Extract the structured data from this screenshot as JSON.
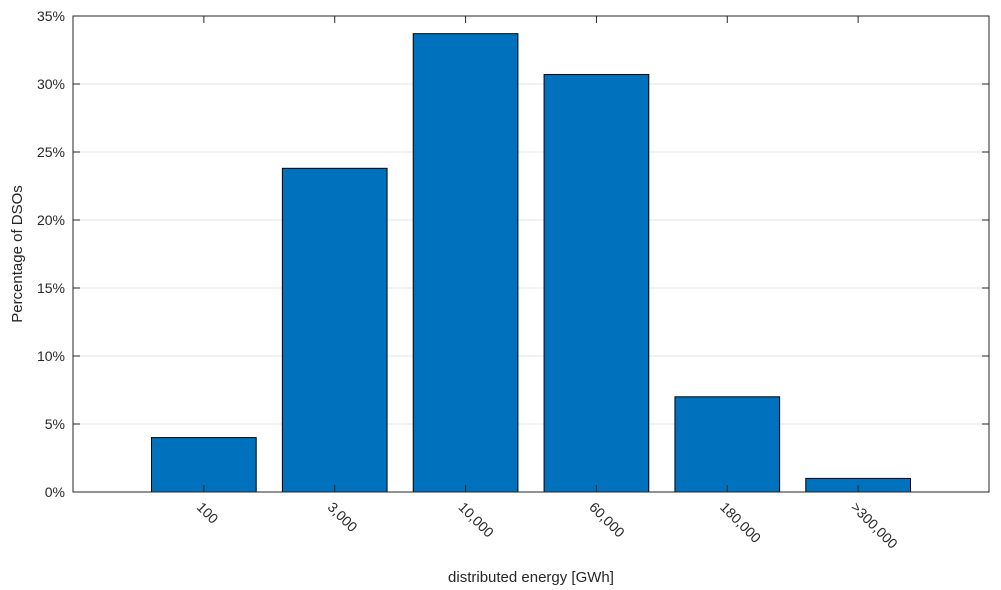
{
  "chart_data": {
    "type": "bar",
    "categories": [
      "100",
      "3,000",
      "10,000",
      "60,000",
      "180,000",
      ">300,000"
    ],
    "values": [
      4.0,
      23.8,
      33.7,
      30.7,
      7.0,
      1.0
    ],
    "xlabel": "distributed energy [GWh]",
    "ylabel": "Percentage of DSOs",
    "ylim": [
      0,
      35
    ],
    "yticks": [
      0,
      5,
      10,
      15,
      20,
      25,
      30,
      35
    ],
    "ytick_labels": [
      "0%",
      "5%",
      "10%",
      "15%",
      "20%",
      "25%",
      "30%",
      "35%"
    ],
    "x_tick_label_rotation_deg": 45,
    "grid": "horizontal",
    "legend": "none",
    "colors": {
      "bar_fill": "#0072BD",
      "bar_edge": "#000000",
      "grid": "#e6e6e6",
      "axis": "#262626"
    }
  }
}
